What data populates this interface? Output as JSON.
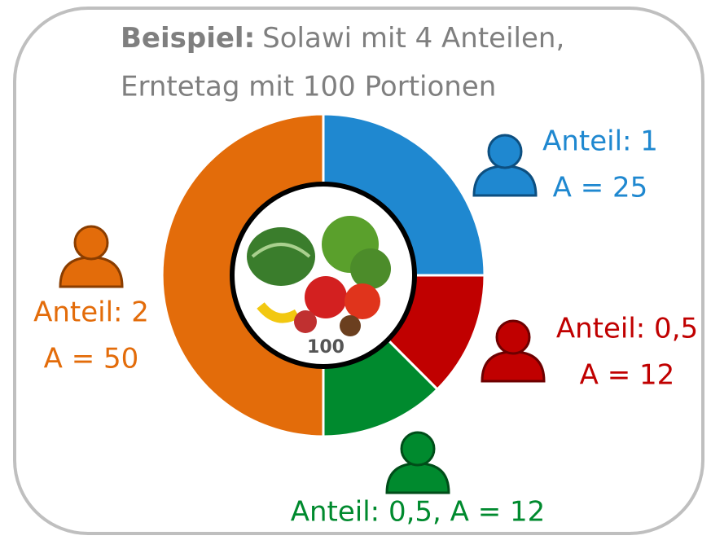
{
  "chart_data": {
    "type": "pie",
    "title_bold": "Beispiel:",
    "title": "Solawi mit 4 Anteilen,",
    "subtitle": "Erntetag mit 100 Portionen",
    "center_value": 100,
    "values": [
      1,
      0.5,
      0.5,
      2
    ],
    "colors": [
      "#1f88d0",
      "#c00000",
      "#008a2e",
      "#e36c0a"
    ],
    "annotations": [
      [
        "Anteil: 1",
        "A = 25"
      ],
      [
        "Anteil: 0,5",
        "A = 12"
      ],
      [
        "Anteil: 0,5, A = 12"
      ],
      [
        "Anteil: 2",
        "A = 50"
      ]
    ]
  }
}
